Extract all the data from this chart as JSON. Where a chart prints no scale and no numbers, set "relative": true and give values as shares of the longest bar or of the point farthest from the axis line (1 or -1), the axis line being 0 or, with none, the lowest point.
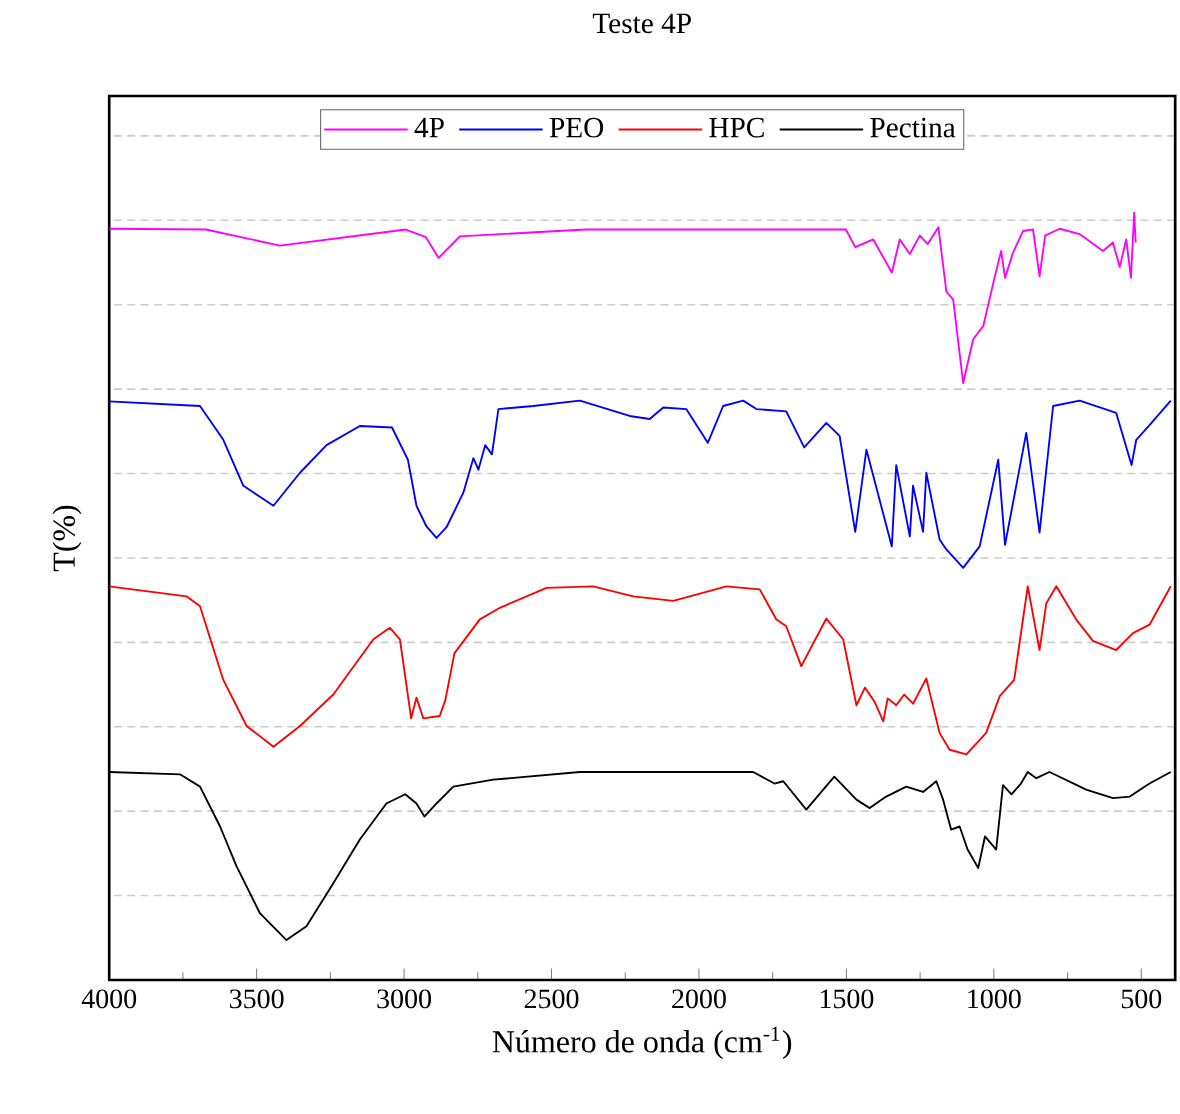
{
  "chart_data": {
    "type": "line",
    "title": "Teste 4P",
    "xlabel": "Número de onda (cm$^{-1}$)",
    "ylabel": "T(%)",
    "relative": true,
    "xlim": [
      4000,
      385
    ],
    "xticks": [
      4000,
      3500,
      3000,
      2500,
      2000,
      1500,
      1000,
      500
    ],
    "grid": "y",
    "legend": "top",
    "series": [
      {
        "name": "4P",
        "color": "#ff00ff",
        "x": [
          4000,
          3672,
          3421,
          2994,
          2926,
          2883,
          2811,
          2384,
          1502,
          1470,
          1409,
          1346,
          1319,
          1285,
          1251,
          1224,
          1188,
          1161,
          1138,
          1104,
          1070,
          1036,
          999,
          975,
          962,
          935,
          901,
          867,
          845,
          826,
          777,
          709,
          630,
          596,
          573,
          551,
          535,
          524,
          519
        ],
        "values": [
          0.979,
          0.978,
          0.957,
          0.978,
          0.968,
          0.941,
          0.969,
          0.978,
          0.978,
          0.955,
          0.965,
          0.922,
          0.965,
          0.946,
          0.97,
          0.959,
          0.981,
          0.897,
          0.887,
          0.778,
          0.835,
          0.852,
          0.913,
          0.95,
          0.915,
          0.948,
          0.976,
          0.978,
          0.917,
          0.97,
          0.979,
          0.972,
          0.95,
          0.961,
          0.929,
          0.965,
          0.915,
          1.0,
          0.961
        ]
      },
      {
        "name": "PEO",
        "color": "#0000ff",
        "x": [
          4000,
          3692,
          3613,
          3545,
          3443,
          3353,
          3263,
          3150,
          3041,
          2987,
          2958,
          2924,
          2890,
          2856,
          2799,
          2765,
          2748,
          2725,
          2702,
          2680,
          2562,
          2404,
          2235,
          2167,
          2121,
          2043,
          1970,
          1918,
          1850,
          1805,
          1704,
          1643,
          1568,
          1523,
          1470,
          1432,
          1346,
          1331,
          1285,
          1274,
          1240,
          1229,
          1184,
          1161,
          1104,
          1048,
          985,
          962,
          890,
          845,
          799,
          709,
          585,
          533,
          517,
          472,
          400
        ],
        "values": [
          0.754,
          0.748,
          0.704,
          0.644,
          0.618,
          0.661,
          0.697,
          0.722,
          0.72,
          0.678,
          0.618,
          0.591,
          0.576,
          0.59,
          0.635,
          0.68,
          0.665,
          0.697,
          0.685,
          0.744,
          0.748,
          0.755,
          0.735,
          0.731,
          0.746,
          0.744,
          0.7,
          0.748,
          0.755,
          0.744,
          0.741,
          0.694,
          0.726,
          0.709,
          0.584,
          0.691,
          0.565,
          0.671,
          0.578,
          0.644,
          0.584,
          0.661,
          0.574,
          0.561,
          0.537,
          0.565,
          0.678,
          0.567,
          0.713,
          0.583,
          0.748,
          0.755,
          0.739,
          0.671,
          0.704,
          0.723,
          0.755
        ]
      },
      {
        "name": "HPC",
        "color": "#ff0000",
        "x": [
          4000,
          3738,
          3692,
          3613,
          3534,
          3443,
          3353,
          3240,
          3104,
          3048,
          3014,
          2976,
          2958,
          2935,
          2879,
          2860,
          2829,
          2743,
          2675,
          2517,
          2359,
          2223,
          2087,
          1907,
          1794,
          1738,
          1704,
          1653,
          1568,
          1511,
          1466,
          1437,
          1405,
          1375,
          1360,
          1331,
          1304,
          1274,
          1229,
          1184,
          1150,
          1093,
          1026,
          980,
          931,
          885,
          845,
          822,
          788,
          721,
          664,
          585,
          528,
          472,
          400
        ],
        "values": [
          0.513,
          0.5,
          0.487,
          0.391,
          0.331,
          0.304,
          0.331,
          0.372,
          0.444,
          0.459,
          0.444,
          0.341,
          0.368,
          0.341,
          0.344,
          0.365,
          0.426,
          0.47,
          0.485,
          0.511,
          0.513,
          0.5,
          0.494,
          0.513,
          0.509,
          0.47,
          0.461,
          0.409,
          0.471,
          0.444,
          0.358,
          0.381,
          0.363,
          0.337,
          0.367,
          0.358,
          0.372,
          0.36,
          0.393,
          0.322,
          0.3,
          0.294,
          0.322,
          0.37,
          0.391,
          0.513,
          0.43,
          0.491,
          0.513,
          0.47,
          0.442,
          0.43,
          0.452,
          0.463,
          0.513
        ]
      },
      {
        "name": "Pectina",
        "color": "#000000",
        "x": [
          4000,
          3760,
          3692,
          3624,
          3568,
          3489,
          3399,
          3331,
          3240,
          3150,
          3060,
          2996,
          2958,
          2931,
          2890,
          2833,
          2698,
          2404,
          1816,
          1744,
          1714,
          1636,
          1541,
          1466,
          1421,
          1365,
          1297,
          1240,
          1195,
          1172,
          1145,
          1116,
          1089,
          1053,
          1030,
          992,
          969,
          940,
          908,
          885,
          856,
          811,
          687,
          596,
          539,
          472,
          400
        ],
        "values": [
          0.271,
          0.268,
          0.252,
          0.2,
          0.148,
          0.087,
          0.052,
          0.07,
          0.126,
          0.183,
          0.23,
          0.242,
          0.23,
          0.213,
          0.23,
          0.252,
          0.261,
          0.271,
          0.271,
          0.256,
          0.259,
          0.222,
          0.265,
          0.235,
          0.224,
          0.239,
          0.252,
          0.245,
          0.259,
          0.235,
          0.196,
          0.2,
          0.17,
          0.146,
          0.187,
          0.17,
          0.254,
          0.242,
          0.256,
          0.271,
          0.263,
          0.271,
          0.248,
          0.237,
          0.239,
          0.256,
          0.271
        ]
      }
    ]
  }
}
